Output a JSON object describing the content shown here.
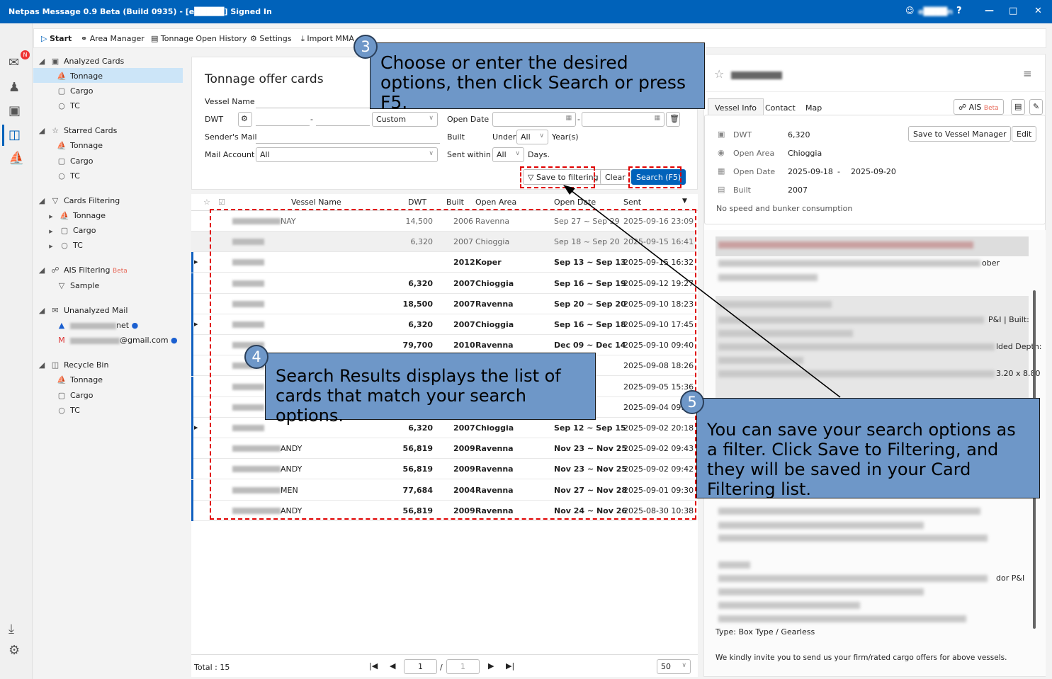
{
  "window": {
    "title": "Netpas Message 0.9 Beta (Build 0935) - [e█████] Signed In",
    "user": "e████n",
    "accent": "#0062ba"
  },
  "rail": {
    "badge": "N"
  },
  "toolbar": {
    "items": [
      "Start",
      "Area Manager",
      "Tonnage Open History",
      "Settings",
      "Import MMA"
    ]
  },
  "tree": {
    "analyzed": {
      "label": "Analyzed Cards",
      "children": [
        "Tonnage",
        "Cargo",
        "TC"
      ]
    },
    "starred": {
      "label": "Starred Cards",
      "children": [
        "Tonnage",
        "Cargo",
        "TC"
      ]
    },
    "filtering": {
      "label": "Cards Filtering",
      "children": [
        "Tonnage",
        "Cargo",
        "TC"
      ]
    },
    "ais": {
      "label": "AIS Filtering",
      "beta": "Beta",
      "children": [
        "Sample"
      ]
    },
    "unanalyzed": {
      "label": "Unanalyzed Mail",
      "accounts": [
        "net",
        "@gmail.com"
      ]
    },
    "recycle": {
      "label": "Recycle Bin",
      "children": [
        "Tonnage",
        "Cargo",
        "TC"
      ]
    }
  },
  "search": {
    "title": "Tonnage offer cards",
    "vessel_name": "Vessel Name",
    "dwt": "DWT",
    "dwt_sep": "-",
    "dwt_preset": "Custom",
    "open_date": "Open Date",
    "date_sep": "-",
    "senders_mail": "Sender's Mail",
    "built": "Built",
    "under": "Under",
    "built_value": "All",
    "years": "Year(s)",
    "mail_account": "Mail Account",
    "mail_account_value": "All",
    "sent_within": "Sent within",
    "sent_value": "All",
    "days": "Days.",
    "save_filter": "Save to filtering",
    "clear": "Clear",
    "search": "Search (F5)"
  },
  "table": {
    "headers": [
      "Vessel Name",
      "DWT",
      "Built",
      "Open Area",
      "Open Date",
      "Sent"
    ],
    "rows": [
      {
        "name": "NAY",
        "dwt": "14,500",
        "built": "2006",
        "area": "Ravenna",
        "open": "Sep 27 ~ Sep 29",
        "sent": "2025-09-16 23:09",
        "read": true
      },
      {
        "name": "",
        "dwt": "6,320",
        "built": "2007",
        "area": "Chioggia",
        "open": "Sep 18 ~ Sep 20",
        "sent": "2025-09-15 16:41",
        "read": true,
        "selected": true
      },
      {
        "name": "",
        "dwt": "",
        "built": "2012",
        "area": "Koper",
        "open": "Sep 13 ~ Sep 13",
        "sent": "2025-09-15 16:32",
        "expand": true
      },
      {
        "name": "",
        "dwt": "6,320",
        "built": "2007",
        "area": "Chioggia",
        "open": "Sep 16 ~ Sep 19",
        "sent": "2025-09-12 19:27"
      },
      {
        "name": "",
        "dwt": "18,500",
        "built": "2007",
        "area": "Ravenna",
        "open": "Sep 20 ~ Sep 20",
        "sent": "2025-09-10 18:23"
      },
      {
        "name": "",
        "dwt": "6,320",
        "built": "2007",
        "area": "Chioggia",
        "open": "Sep 16 ~ Sep 18",
        "sent": "2025-09-10 17:45",
        "expand": true
      },
      {
        "name": "",
        "dwt": "79,700",
        "built": "2010",
        "area": "Ravenna",
        "open": "Dec 09 ~ Dec 14",
        "sent": "2025-09-10 09:40"
      },
      {
        "name": "",
        "dwt": "",
        "built": "",
        "area": "",
        "open": "p 28",
        "sent": "2025-09-08 18:26"
      },
      {
        "name": "",
        "dwt": "",
        "built": "",
        "area": "",
        "open": "ov 28",
        "sent": "2025-09-05 15:36"
      },
      {
        "name": "",
        "dwt": "",
        "built": "",
        "area": "",
        "open": "ov 30",
        "sent": "2025-09-04 09:4"
      },
      {
        "name": "",
        "dwt": "6,320",
        "built": "2007",
        "area": "Chioggia",
        "open": "Sep 12 ~ Sep 15",
        "sent": "2025-09-02 20:18",
        "expand": true
      },
      {
        "name": "ANDY",
        "dwt": "56,819",
        "built": "2009",
        "area": "Ravenna",
        "open": "Nov 23 ~ Nov 25",
        "sent": "2025-09-02 09:43"
      },
      {
        "name": "ANDY",
        "dwt": "56,819",
        "built": "2009",
        "area": "Ravenna",
        "open": "Nov 23 ~ Nov 25",
        "sent": "2025-09-02 09:42"
      },
      {
        "name": "MEN",
        "dwt": "77,684",
        "built": "2004",
        "area": "Ravenna",
        "open": "Nov 27 ~ Nov 28",
        "sent": "2025-09-01 09:30"
      },
      {
        "name": "ANDY",
        "dwt": "56,819",
        "built": "2009",
        "area": "Ravenna",
        "open": "Nov 24 ~ Nov 26",
        "sent": "2025-08-30 10:38"
      }
    ]
  },
  "footer": {
    "total": "Total : 15",
    "page": "1",
    "page_sep": "/",
    "pages": "1",
    "page_size": "50"
  },
  "detail": {
    "tabs": [
      "Vessel Info",
      "Contact",
      "Map"
    ],
    "ais": "AIS",
    "ais_beta": "Beta",
    "save_vm": "Save to Vessel Manager",
    "edit": "Edit",
    "fields": [
      {
        "label": "DWT",
        "value": "6,320"
      },
      {
        "label": "Open Area",
        "value": "Chioggia"
      },
      {
        "label": "Open Date",
        "value": "2025-09-18",
        "value2": "2025-09-20",
        "sep": "-"
      },
      {
        "label": "Built",
        "value": "2007"
      }
    ],
    "no_speed": "No speed and bunker consumption",
    "body_fragments": [
      "ober",
      "P&I | Built:",
      "lded Depth:",
      "3.20 x 8.80",
      "dor P&I"
    ],
    "type_line": "Type: Box Type / Gearless",
    "closing": "We kindly invite you to send us your firm/rated cargo offers for above vessels."
  },
  "callouts": [
    {
      "num": "3",
      "text": "Choose or enter the desired options, then click Search or press F5."
    },
    {
      "num": "4",
      "text": "Search Results displays the list of cards that match your search options."
    },
    {
      "num": "5",
      "text": "You can save your search options as a filter. Click Save to Filtering, and they will be saved in your Card Filtering list."
    }
  ]
}
